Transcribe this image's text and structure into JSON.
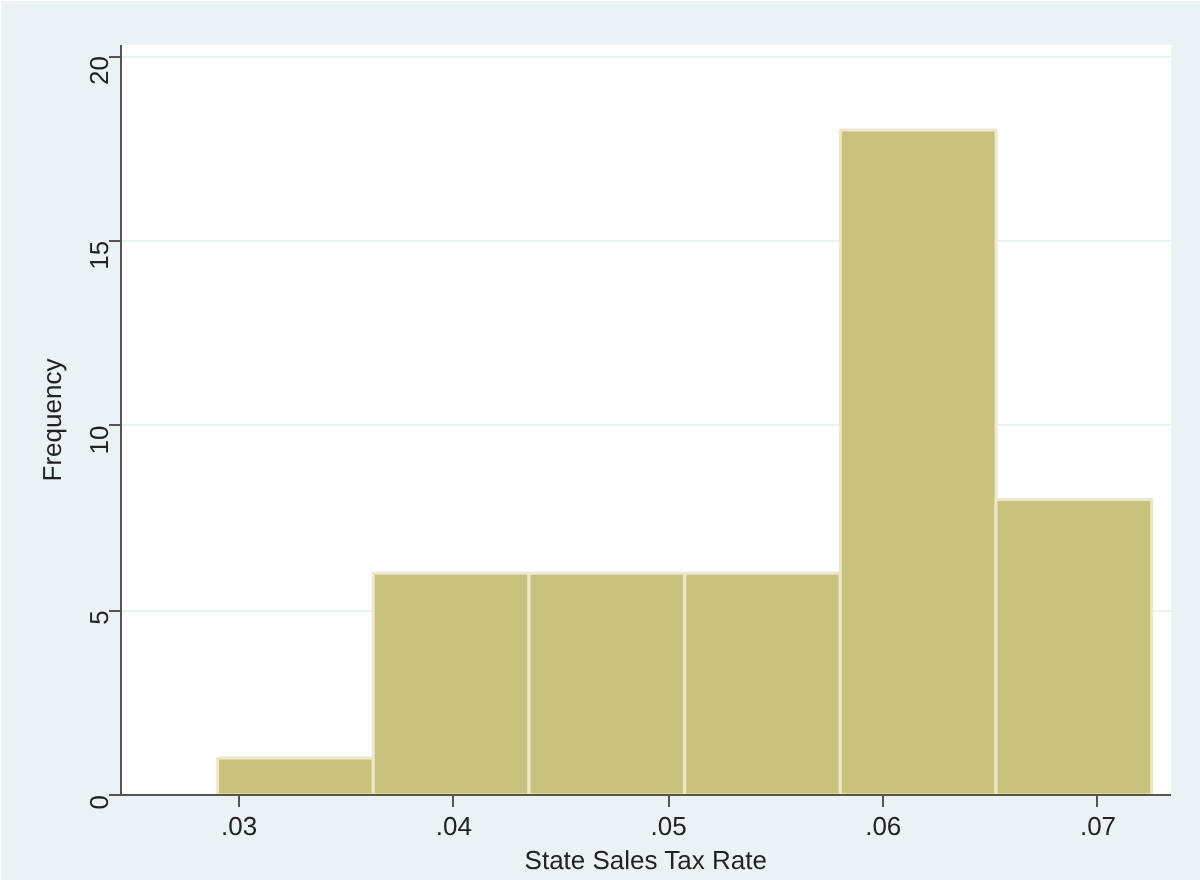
{
  "chart_data": {
    "type": "histogram",
    "xlabel": "State Sales Tax Rate",
    "ylabel": "Frequency",
    "bins": [
      0.029,
      0.03625,
      0.0435,
      0.05075,
      0.058,
      0.06525,
      0.0725
    ],
    "values": [
      1,
      6,
      6,
      6,
      18,
      8
    ],
    "color": "#c9c27f",
    "xlim": [
      0.0245,
      0.0734
    ],
    "xticks": [
      {
        "value": 0.03,
        "label": ".03"
      },
      {
        "value": 0.04,
        "label": ".04"
      },
      {
        "value": 0.05,
        "label": ".05"
      },
      {
        "value": 0.06,
        "label": ".06"
      },
      {
        "value": 0.07,
        "label": ".07"
      }
    ],
    "ylim": [
      0,
      20.3
    ],
    "yticks": [
      0,
      5,
      10,
      15,
      20
    ],
    "grid": "y"
  }
}
